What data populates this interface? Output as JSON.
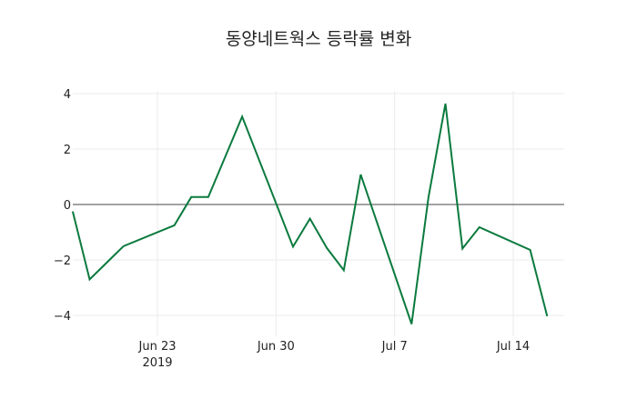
{
  "chart_data": {
    "type": "line",
    "title": "동양네트웍스 등락률 변화",
    "xlabel": "",
    "ylabel": "",
    "x": [
      "2019-06-18",
      "2019-06-19",
      "2019-06-21",
      "2019-06-24",
      "2019-06-25",
      "2019-06-26",
      "2019-06-28",
      "2019-07-01",
      "2019-07-02",
      "2019-07-03",
      "2019-07-04",
      "2019-07-05",
      "2019-07-08",
      "2019-07-09",
      "2019-07-10",
      "2019-07-11",
      "2019-07-12",
      "2019-07-15",
      "2019-07-16"
    ],
    "series": [
      {
        "name": "등락률",
        "color": "#0b7a3e",
        "values": [
          -0.25,
          -2.7,
          -1.5,
          -0.75,
          0.27,
          0.27,
          3.17,
          -1.52,
          -0.51,
          -1.57,
          -2.37,
          1.08,
          -4.31,
          0.27,
          3.64,
          -1.59,
          -0.82,
          -1.64,
          -4.03
        ]
      }
    ],
    "ylim": [
      -4.4,
      4.0
    ],
    "yticks": [
      4,
      2,
      0,
      -2,
      -4
    ],
    "ytick_labels": [
      "4",
      "2",
      "0",
      "−2",
      "−4"
    ],
    "xticks": [
      {
        "date": "2019-06-23",
        "label": "Jun 23",
        "sublabel": "2019"
      },
      {
        "date": "2019-06-30",
        "label": "Jun 30",
        "sublabel": ""
      },
      {
        "date": "2019-07-07",
        "label": "Jul 7",
        "sublabel": ""
      },
      {
        "date": "2019-07-14",
        "label": "Jul 14",
        "sublabel": ""
      }
    ],
    "grid": true,
    "zero_line": true,
    "legend": "none"
  }
}
